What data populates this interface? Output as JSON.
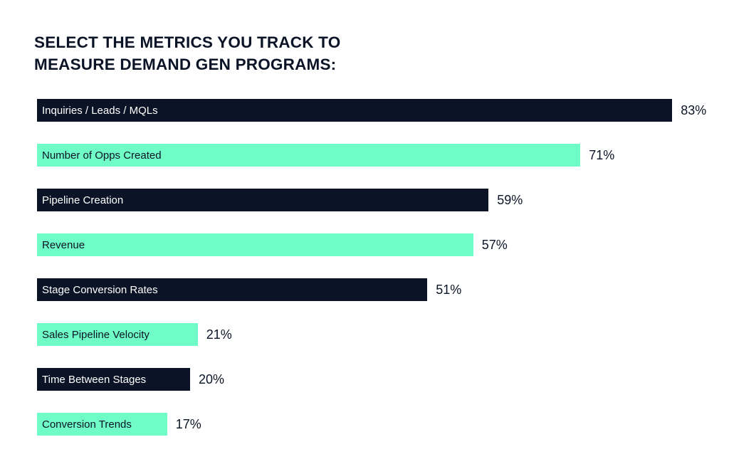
{
  "chart_data": {
    "type": "bar",
    "orientation": "horizontal",
    "title_lines": [
      "SELECT THE METRICS YOU TRACK TO",
      "MEASURE DEMAND GEN PROGRAMS:"
    ],
    "categories": [
      "Inquiries / Leads / MQLs",
      "Number of Opps Created",
      "Pipeline Creation",
      "Revenue",
      "Stage Conversion Rates",
      "Sales Pipeline Velocity",
      "Time Between Stages",
      "Conversion Trends"
    ],
    "values": [
      83,
      71,
      59,
      57,
      51,
      21,
      20,
      17
    ],
    "value_labels": [
      "83%",
      "71%",
      "59%",
      "57%",
      "51%",
      "21%",
      "20%",
      "17%"
    ],
    "unit": "%",
    "xlim": [
      0,
      100
    ],
    "grid": false,
    "legend": "none",
    "colors": {
      "dark": "#0b1426",
      "light": "#6ffcc7",
      "dark_text": "#ffffff",
      "light_text": "#0b1426"
    },
    "color_pattern": [
      "dark",
      "light",
      "dark",
      "light",
      "dark",
      "light",
      "dark",
      "light"
    ]
  }
}
